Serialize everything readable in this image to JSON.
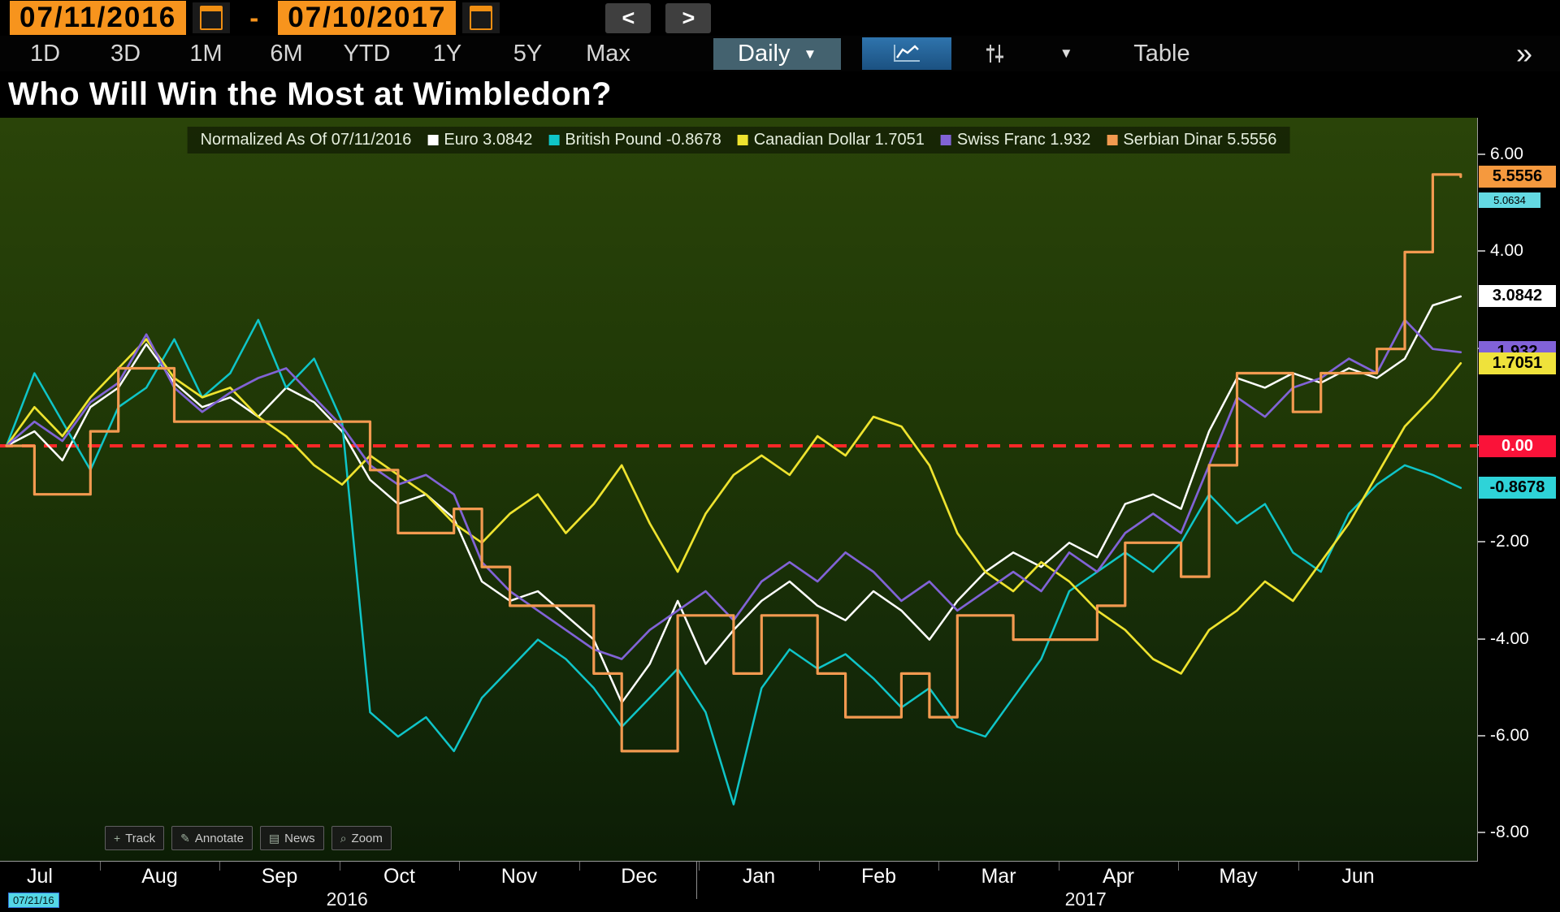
{
  "header": {
    "date_start": "07/11/2016",
    "date_end": "07/10/2017",
    "range_separator": "-",
    "prev": "<",
    "next": ">"
  },
  "toolbar": {
    "periods": [
      "1D",
      "3D",
      "1M",
      "6M",
      "YTD",
      "1Y",
      "5Y",
      "Max"
    ],
    "frequency": "Daily",
    "frequency_caret": "▼",
    "dropdown_caret": "▼",
    "table": "Table",
    "expand": "»"
  },
  "title": "Who Will Win the Most at Wimbledon?",
  "chart": {
    "legend_title": "Normalized As Of 07/11/2016",
    "y_axis": {
      "ticks": [
        {
          "label": "6.00",
          "value": 6
        },
        {
          "label": "4.00",
          "value": 4
        },
        {
          "label": "2.00",
          "value": 2
        },
        {
          "label": "0.00",
          "value": 0
        },
        {
          "label": "-2.00",
          "value": -2
        },
        {
          "label": "-4.00",
          "value": -4
        },
        {
          "label": "-6.00",
          "value": -6
        },
        {
          "label": "-8.00",
          "value": -8
        }
      ],
      "badges": [
        {
          "label": "5.5556",
          "value": 5.5556,
          "bg": "#f5993e",
          "fg": "#000000",
          "small": false
        },
        {
          "label": "5.0634",
          "value": 5.0634,
          "bg": "#63d9e2",
          "fg": "#000000",
          "small": true
        },
        {
          "label": "3.0842",
          "value": 3.0842,
          "bg": "#ffffff",
          "fg": "#000000",
          "small": false
        },
        {
          "label": "1.932",
          "value": 1.932,
          "bg": "#8162d8",
          "fg": "#000000",
          "small": false
        },
        {
          "label": "1.7051",
          "value": 1.7051,
          "bg": "#efe23b",
          "fg": "#000000",
          "small": false
        },
        {
          "label": "0.00",
          "value": 0,
          "bg": "#fa1239",
          "fg": "#ffffff",
          "small": false
        },
        {
          "label": "-0.8678",
          "value": -0.8678,
          "bg": "#2ed3d8",
          "fg": "#000000",
          "small": false
        }
      ]
    },
    "x_axis": {
      "months": [
        "Jul",
        "Aug",
        "Sep",
        "Oct",
        "Nov",
        "Dec",
        "Jan",
        "Feb",
        "Mar",
        "Apr",
        "May",
        "Jun"
      ],
      "years": [
        {
          "label": "2016",
          "x_frac": 0.235
        },
        {
          "label": "2017",
          "x_frac": 0.735
        }
      ]
    },
    "tools": [
      {
        "icon": "+",
        "label": "Track"
      },
      {
        "icon": "✎",
        "label": "Annotate"
      },
      {
        "icon": "▤",
        "label": "News"
      },
      {
        "icon": "⌕",
        "label": "Zoom"
      }
    ],
    "cursor_date": "07/21/16"
  },
  "chart_data": {
    "type": "line",
    "title": "Who Will Win the Most at Wimbledon?",
    "subtitle": "Normalized As Of 07/11/2016",
    "x_start": "07/11/2016",
    "x_end": "07/10/2017",
    "x_unit": "weekly samples, Jul 2016 through early Jul 2017",
    "ylim": [
      -8.5,
      6.8
    ],
    "y_ticks": [
      6,
      4,
      2,
      0,
      -2,
      -4,
      -6,
      -8
    ],
    "grid": false,
    "legend_position": "top",
    "zero_line": {
      "value": 0,
      "color": "#ff2828",
      "style": "dashed"
    },
    "series": [
      {
        "name": "Euro",
        "last": "3.0842",
        "color": "#ffffff",
        "width": 2.5,
        "step": false,
        "values": [
          0,
          0.3,
          -0.3,
          0.8,
          1.2,
          2.1,
          1.3,
          0.8,
          1.0,
          0.6,
          1.2,
          0.9,
          0.3,
          -0.7,
          -1.2,
          -1.0,
          -1.5,
          -2.8,
          -3.2,
          -3.0,
          -3.5,
          -4.0,
          -5.3,
          -4.5,
          -3.2,
          -4.5,
          -3.8,
          -3.2,
          -2.8,
          -3.3,
          -3.6,
          -3.0,
          -3.4,
          -4.0,
          -3.2,
          -2.6,
          -2.2,
          -2.5,
          -2.0,
          -2.3,
          -1.2,
          -1.0,
          -1.3,
          0.3,
          1.4,
          1.2,
          1.5,
          1.3,
          1.6,
          1.4,
          1.8,
          2.9,
          3.0842
        ]
      },
      {
        "name": "British Pound",
        "last": "-0.8678",
        "color": "#0fc5c8",
        "width": 2.5,
        "step": false,
        "values": [
          0,
          1.5,
          0.5,
          -0.5,
          0.8,
          1.2,
          2.2,
          1.0,
          1.5,
          2.6,
          1.2,
          1.8,
          0.5,
          -5.5,
          -6.0,
          -5.6,
          -6.3,
          -5.2,
          -4.6,
          -4.0,
          -4.4,
          -5.0,
          -5.8,
          -5.2,
          -4.6,
          -5.5,
          -7.4,
          -5.0,
          -4.2,
          -4.6,
          -4.3,
          -4.8,
          -5.4,
          -5.0,
          -5.8,
          -6.0,
          -5.2,
          -4.4,
          -3.0,
          -2.6,
          -2.2,
          -2.6,
          -2.0,
          -1.0,
          -1.6,
          -1.2,
          -2.2,
          -2.6,
          -1.4,
          -0.8,
          -0.4,
          -0.6,
          -0.8678
        ]
      },
      {
        "name": "Canadian Dollar",
        "last": "1.7051",
        "color": "#eee32f",
        "width": 2.7,
        "step": false,
        "values": [
          0,
          0.8,
          0.2,
          1.0,
          1.6,
          2.2,
          1.4,
          1.0,
          1.2,
          0.6,
          0.2,
          -0.4,
          -0.8,
          -0.2,
          -0.6,
          -1.0,
          -1.6,
          -2.0,
          -1.4,
          -1.0,
          -1.8,
          -1.2,
          -0.4,
          -1.6,
          -2.6,
          -1.4,
          -0.6,
          -0.2,
          -0.6,
          0.2,
          -0.2,
          0.6,
          0.4,
          -0.4,
          -1.8,
          -2.6,
          -3.0,
          -2.4,
          -2.8,
          -3.4,
          -3.8,
          -4.4,
          -4.7,
          -3.8,
          -3.4,
          -2.8,
          -3.2,
          -2.4,
          -1.6,
          -0.6,
          0.4,
          1.0,
          1.7051
        ]
      },
      {
        "name": "Swiss Franc",
        "last": "1.932",
        "color": "#8163d6",
        "width": 2.7,
        "step": false,
        "values": [
          0,
          0.5,
          0.1,
          0.9,
          1.3,
          2.3,
          1.2,
          0.7,
          1.1,
          1.4,
          1.6,
          1.0,
          0.4,
          -0.4,
          -0.8,
          -0.6,
          -1.0,
          -2.4,
          -3.0,
          -3.4,
          -3.8,
          -4.2,
          -4.4,
          -3.8,
          -3.4,
          -3.0,
          -3.6,
          -2.8,
          -2.4,
          -2.8,
          -2.2,
          -2.6,
          -3.2,
          -2.8,
          -3.4,
          -3.0,
          -2.6,
          -3.0,
          -2.2,
          -2.6,
          -1.8,
          -1.4,
          -1.8,
          -0.4,
          1.0,
          0.6,
          1.2,
          1.4,
          1.8,
          1.5,
          2.6,
          2.0,
          1.932
        ]
      },
      {
        "name": "Serbian Dinar",
        "last": "5.5556",
        "color": "#f29a50",
        "width": 3.2,
        "step": true,
        "values": [
          0,
          -1.0,
          -1.0,
          0.3,
          1.6,
          1.6,
          0.5,
          0.5,
          0.5,
          0.5,
          0.5,
          0.5,
          0.5,
          -0.5,
          -1.8,
          -1.8,
          -1.3,
          -2.5,
          -3.3,
          -3.3,
          -3.3,
          -4.7,
          -6.3,
          -6.3,
          -3.5,
          -3.5,
          -4.7,
          -3.5,
          -3.5,
          -4.7,
          -5.6,
          -5.6,
          -4.7,
          -5.6,
          -3.5,
          -3.5,
          -4.0,
          -4.0,
          -4.0,
          -3.3,
          -2.0,
          -2.0,
          -2.7,
          -0.4,
          1.5,
          1.5,
          0.7,
          1.5,
          1.5,
          2.0,
          4.0,
          5.6,
          5.5556
        ]
      }
    ]
  }
}
